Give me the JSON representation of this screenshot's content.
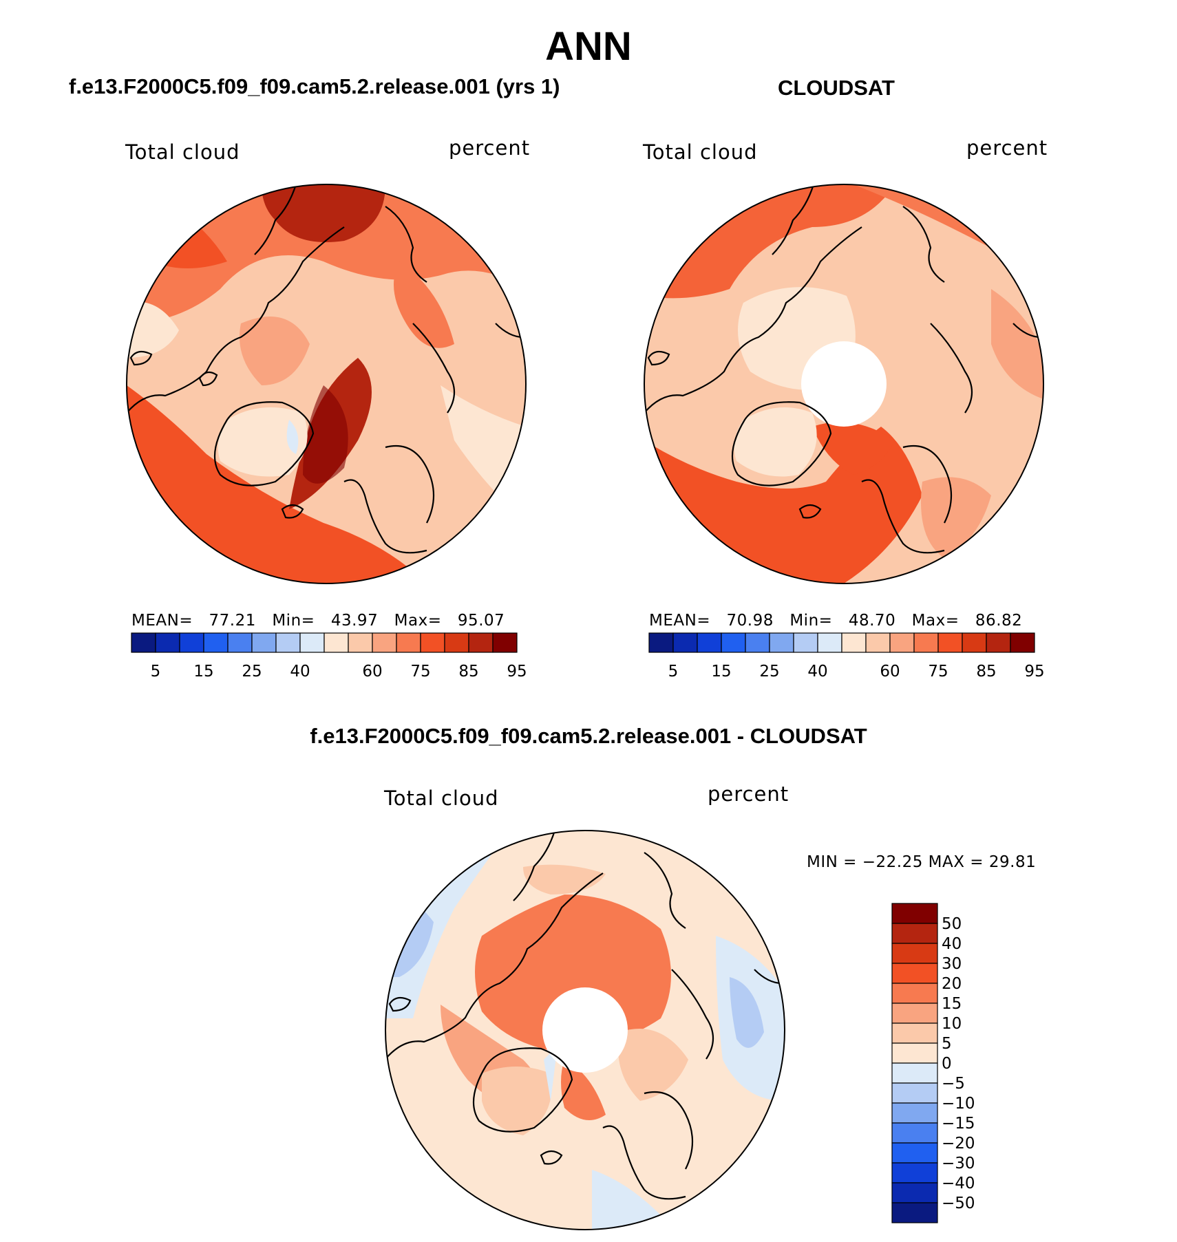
{
  "main_title": "ANN",
  "panels": [
    {
      "title": "f.e13.F2000C5.f09_f09.cam5.2.release.001 (yrs 1)",
      "variable": "Total cloud",
      "units": "percent",
      "mean_label": "MEAN=",
      "mean": "77.21",
      "min_label": "Min=",
      "min": "43.97",
      "max_label": "Max=",
      "max": "95.07"
    },
    {
      "title": "CLOUDSAT",
      "variable": "Total cloud",
      "units": "percent",
      "mean_label": "MEAN=",
      "mean": "70.98",
      "min_label": "Min=",
      "min": "48.70",
      "max_label": "Max=",
      "max": "86.82"
    },
    {
      "title": "f.e13.F2000C5.f09_f09.cam5.2.release.001 - CLOUDSAT",
      "variable": "Total cloud",
      "units": "percent",
      "range_text": "MIN = −22.25 MAX =   29.81"
    }
  ],
  "chart_data": [
    {
      "type": "heatmap",
      "projection": "north polar stereographic",
      "title": "f.e13.F2000C5.f09_f09.cam5.2.release.001 (yrs 1)",
      "variable": "Total cloud",
      "units": "percent",
      "stats": {
        "mean": 77.21,
        "min": 43.97,
        "max": 95.07
      },
      "colorbar_ticks": [
        "5",
        "15",
        "25",
        "40",
        "60",
        "75",
        "85",
        "95"
      ],
      "colorbar_colors": [
        "#0a1a80",
        "#0b2ab0",
        "#1040d8",
        "#2060f0",
        "#4a80f0",
        "#80a8f0",
        "#b4ccf4",
        "#dceaf8",
        "#fde6d2",
        "#fbc9aa",
        "#f9a480",
        "#f77a50",
        "#f25125",
        "#d83a14",
        "#b42510",
        "#800000"
      ]
    },
    {
      "type": "heatmap",
      "projection": "north polar stereographic",
      "title": "CLOUDSAT",
      "variable": "Total cloud",
      "units": "percent",
      "stats": {
        "mean": 70.98,
        "min": 48.7,
        "max": 86.82
      },
      "colorbar_ticks": [
        "5",
        "15",
        "25",
        "40",
        "60",
        "75",
        "85",
        "95"
      ],
      "colorbar_colors": [
        "#0a1a80",
        "#0b2ab0",
        "#1040d8",
        "#2060f0",
        "#4a80f0",
        "#80a8f0",
        "#b4ccf4",
        "#dceaf8",
        "#fde6d2",
        "#fbc9aa",
        "#f9a480",
        "#f77a50",
        "#f25125",
        "#d83a14",
        "#b42510",
        "#800000"
      ]
    },
    {
      "type": "heatmap",
      "projection": "north polar stereographic",
      "title": "f.e13.F2000C5.f09_f09.cam5.2.release.001 - CLOUDSAT",
      "variable": "Total cloud",
      "units": "percent",
      "stats": {
        "min": -22.25,
        "max": 29.81
      },
      "colorbar_ticks": [
        "50",
        "40",
        "30",
        "20",
        "15",
        "10",
        "5",
        "0",
        "−5",
        "−10",
        "−15",
        "−20",
        "−30",
        "−40",
        "−50"
      ],
      "colorbar_colors": [
        "#800000",
        "#b42510",
        "#d83a14",
        "#f25125",
        "#f77a50",
        "#f9a480",
        "#fbc9aa",
        "#fde6d2",
        "#dceaf8",
        "#b4ccf4",
        "#80a8f0",
        "#4a80f0",
        "#2060f0",
        "#1040d8",
        "#0b2ab0",
        "#0a1a80"
      ]
    }
  ]
}
